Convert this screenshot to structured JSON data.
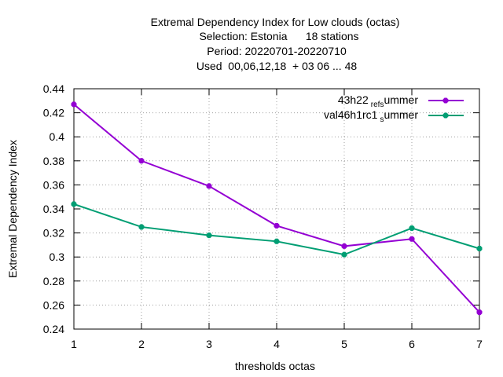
{
  "chart_data": {
    "type": "line",
    "title_lines": [
      "Extremal Dependency Index  for Low clouds (octas)",
      "Selection: Estonia      18 stations",
      "Period: 20220701-20220710",
      "Used  00,06,12,18  + 03 06 ... 48"
    ],
    "xlabel": "thresholds octas",
    "ylabel": "Extremal Dependency Index",
    "x": [
      1,
      2,
      3,
      4,
      5,
      6,
      7
    ],
    "xlim": [
      1,
      7
    ],
    "ylim": [
      0.24,
      0.44
    ],
    "yticks": [
      0.24,
      0.26,
      0.28,
      0.3,
      0.32,
      0.34,
      0.36,
      0.38,
      0.4,
      0.42,
      0.44
    ],
    "ytick_labels": [
      "0.24",
      "0.26",
      "0.28",
      "0.3",
      "0.32",
      "0.34",
      "0.36",
      "0.38",
      "0.4",
      "0.42",
      "0.44"
    ],
    "xtick_labels": [
      "1",
      "2",
      "3",
      "4",
      "5",
      "6",
      "7"
    ],
    "grid": true,
    "legend_position": "top-right",
    "series": [
      {
        "legend_main": "43h22",
        "legend_sub1": "ref",
        "legend_sub2": "s",
        "legend_tail": "ummer",
        "color": "#9400d3",
        "values": [
          0.427,
          0.38,
          0.359,
          0.326,
          0.309,
          0.315,
          0.254
        ]
      },
      {
        "legend_main": "val46h1rc1",
        "legend_sub1": "",
        "legend_sub2": "s",
        "legend_tail": "ummer",
        "color": "#009e73",
        "values": [
          0.344,
          0.325,
          0.318,
          0.313,
          0.302,
          0.324,
          0.307
        ]
      }
    ]
  }
}
